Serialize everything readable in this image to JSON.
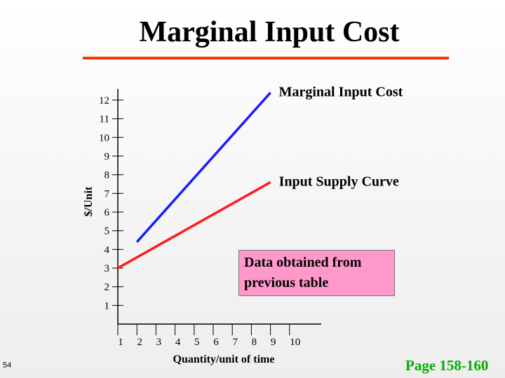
{
  "slide": {
    "title": "Marginal Input Cost",
    "slide_number": "54",
    "page_reference": "Page 158-160",
    "note_box": {
      "line1": "Data obtained from",
      "line2": "previous table",
      "background": "#ff99cc"
    }
  },
  "colors": {
    "title_rule": "#ff3300",
    "marginal_input_cost": "#1a1aff",
    "input_supply_curve": "#ff1a1a",
    "page_reference": "#00b000"
  },
  "chart_data": {
    "type": "line",
    "title": "Marginal Input Cost",
    "xlabel": "Quantity/unit of time",
    "ylabel": "$/Unit",
    "x_ticks": [
      1,
      2,
      3,
      4,
      5,
      6,
      7,
      8,
      9,
      10
    ],
    "y_ticks": [
      1,
      2,
      3,
      4,
      5,
      6,
      7,
      8,
      9,
      10,
      11,
      12
    ],
    "xlim": [
      1,
      10
    ],
    "ylim": [
      0,
      12.6
    ],
    "grid": false,
    "series": [
      {
        "name": "Marginal Input Cost",
        "color": "#1a1aff",
        "points": [
          [
            2,
            4.4
          ],
          [
            9,
            12.4
          ]
        ]
      },
      {
        "name": "Input Supply Curve",
        "color": "#ff1a1a",
        "points": [
          [
            1,
            3
          ],
          [
            9,
            7.6
          ]
        ]
      }
    ]
  }
}
